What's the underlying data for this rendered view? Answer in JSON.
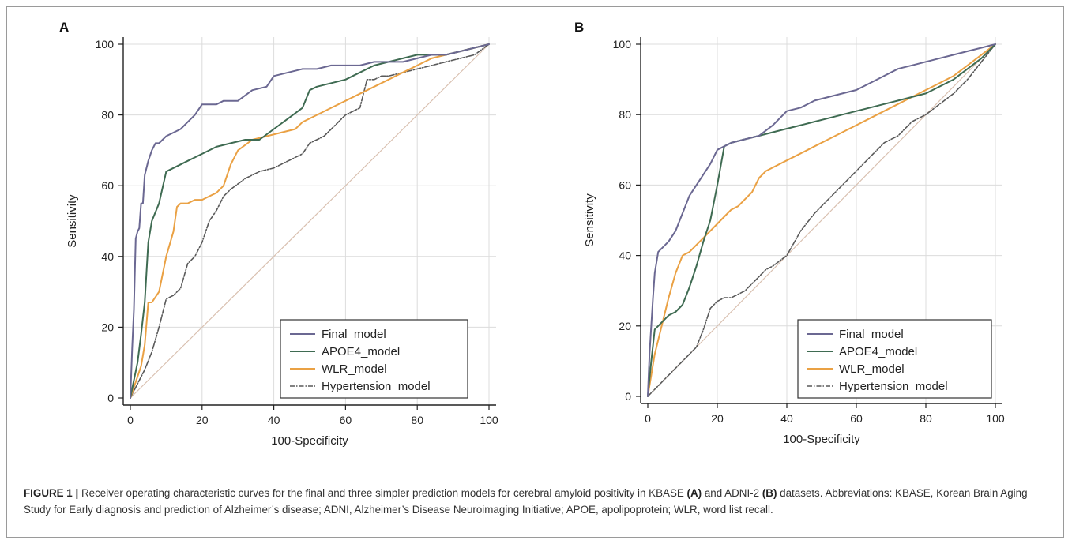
{
  "colors": {
    "final": "#6b6892",
    "apoe4": "#3f6b52",
    "wlr": "#eaa144",
    "hypertension": "#595959",
    "reference": "#d9c0b0",
    "grid": "#dcdcdc",
    "axis": "#222222"
  },
  "chart_data": [
    {
      "panel": "A",
      "type": "line",
      "xlabel": "100-Specificity",
      "ylabel": "Sensitivity",
      "xlim": [
        0,
        100
      ],
      "ylim": [
        0,
        100
      ],
      "xticks": [
        "0",
        "20",
        "40",
        "60",
        "80",
        "100"
      ],
      "yticks": [
        "0",
        "20",
        "40",
        "60",
        "80",
        "100"
      ],
      "grid": true,
      "legend_position": "bottom-right",
      "series": [
        {
          "name": "Final_model",
          "key": "final",
          "style": "solid",
          "x": [
            0,
            0.5,
            1,
            1.5,
            2,
            2.5,
            3,
            3.5,
            4,
            5,
            6,
            7,
            8,
            10,
            12,
            14,
            16,
            18,
            20,
            24,
            26,
            30,
            34,
            38,
            40,
            44,
            48,
            52,
            56,
            60,
            64,
            68,
            72,
            76,
            80,
            84,
            88,
            92,
            96,
            100
          ],
          "y": [
            0,
            14,
            25,
            45,
            47,
            48,
            55,
            55,
            63,
            67,
            70,
            72,
            72,
            74,
            75,
            76,
            78,
            80,
            83,
            83,
            84,
            84,
            87,
            88,
            91,
            92,
            93,
            93,
            94,
            94,
            94,
            95,
            95,
            95,
            96,
            97,
            97,
            98,
            99,
            100
          ]
        },
        {
          "name": "APOE4_model",
          "key": "apoe4",
          "style": "solid",
          "x": [
            0,
            1,
            2,
            3,
            4,
            5,
            6,
            8,
            10,
            12,
            14,
            16,
            18,
            20,
            24,
            28,
            32,
            36,
            40,
            44,
            48,
            50,
            52,
            56,
            60,
            64,
            68,
            72,
            76,
            80,
            84,
            88,
            92,
            96,
            100
          ],
          "y": [
            0,
            5,
            10,
            18,
            27,
            44,
            50,
            55,
            64,
            65,
            66,
            67,
            68,
            69,
            71,
            72,
            73,
            73,
            76,
            79,
            82,
            87,
            88,
            89,
            90,
            92,
            94,
            95,
            96,
            97,
            97,
            97,
            98,
            99,
            100
          ]
        },
        {
          "name": "WLR_model",
          "key": "wlr",
          "style": "solid",
          "x": [
            0,
            1,
            2,
            3,
            4,
            5,
            6,
            8,
            10,
            12,
            13,
            14,
            16,
            18,
            20,
            22,
            24,
            26,
            28,
            30,
            34,
            38,
            42,
            46,
            48,
            52,
            56,
            60,
            64,
            68,
            72,
            76,
            80,
            84,
            88,
            92,
            96,
            100
          ],
          "y": [
            0,
            3,
            6,
            9,
            15,
            27,
            27,
            30,
            40,
            47,
            54,
            55,
            55,
            56,
            56,
            57,
            58,
            60,
            66,
            70,
            73,
            74,
            75,
            76,
            78,
            80,
            82,
            84,
            86,
            88,
            90,
            92,
            94,
            96,
            97,
            98,
            99,
            100
          ]
        },
        {
          "name": "Hypertension_model",
          "key": "hypertension",
          "style": "dashdot",
          "x": [
            0,
            2,
            4,
            6,
            8,
            10,
            12,
            14,
            16,
            18,
            20,
            22,
            24,
            26,
            28,
            32,
            36,
            40,
            44,
            48,
            50,
            54,
            58,
            60,
            64,
            66,
            68,
            70,
            72,
            76,
            80,
            84,
            88,
            92,
            96,
            100
          ],
          "y": [
            0,
            4,
            8,
            13,
            20,
            28,
            29,
            31,
            38,
            40,
            44,
            50,
            53,
            57,
            59,
            62,
            64,
            65,
            67,
            69,
            72,
            74,
            78,
            80,
            82,
            90,
            90,
            91,
            91,
            92,
            93,
            94,
            95,
            96,
            97,
            100
          ]
        },
        {
          "name": "",
          "key": "reference",
          "style": "diagonal",
          "x": [
            0,
            100
          ],
          "y": [
            0,
            100
          ]
        }
      ]
    },
    {
      "panel": "B",
      "type": "line",
      "xlabel": "100-Specificity",
      "ylabel": "Sensitivity",
      "xlim": [
        0,
        100
      ],
      "ylim": [
        0,
        100
      ],
      "xticks": [
        "0",
        "20",
        "40",
        "60",
        "80",
        "100"
      ],
      "yticks": [
        "0",
        "20",
        "40",
        "60",
        "80",
        "100"
      ],
      "grid": true,
      "legend_position": "bottom-right",
      "series": [
        {
          "name": "Final_model",
          "key": "final",
          "style": "solid",
          "x": [
            0,
            0.5,
            1,
            1.5,
            2,
            3,
            4,
            6,
            8,
            10,
            12,
            14,
            16,
            18,
            20,
            22,
            24,
            28,
            32,
            36,
            40,
            44,
            48,
            52,
            56,
            60,
            64,
            68,
            72,
            76,
            80,
            84,
            88,
            92,
            96,
            100
          ],
          "y": [
            0,
            12,
            20,
            28,
            35,
            41,
            42,
            44,
            47,
            52,
            57,
            60,
            63,
            66,
            70,
            71,
            72,
            73,
            74,
            77,
            81,
            82,
            84,
            85,
            86,
            87,
            89,
            91,
            93,
            94,
            95,
            96,
            97,
            98,
            99,
            100
          ]
        },
        {
          "name": "APOE4_model",
          "key": "apoe4",
          "style": "solid",
          "x": [
            0,
            1,
            2,
            4,
            6,
            8,
            10,
            12,
            14,
            16,
            18,
            20,
            22,
            24,
            28,
            32,
            36,
            40,
            44,
            48,
            52,
            56,
            60,
            64,
            68,
            72,
            76,
            80,
            84,
            88,
            92,
            96,
            100
          ],
          "y": [
            0,
            10,
            19,
            21,
            23,
            24,
            26,
            31,
            37,
            44,
            50,
            60,
            71,
            72,
            73,
            74,
            75,
            76,
            77,
            78,
            79,
            80,
            81,
            82,
            83,
            84,
            85,
            86,
            88,
            90,
            93,
            96,
            100
          ]
        },
        {
          "name": "WLR_model",
          "key": "wlr",
          "style": "solid",
          "x": [
            0,
            1,
            2,
            3,
            4,
            6,
            8,
            10,
            12,
            14,
            16,
            18,
            20,
            22,
            24,
            26,
            28,
            30,
            32,
            34,
            36,
            40,
            44,
            48,
            52,
            56,
            60,
            64,
            68,
            72,
            76,
            80,
            84,
            88,
            92,
            96,
            100
          ],
          "y": [
            0,
            6,
            12,
            16,
            20,
            28,
            35,
            40,
            41,
            43,
            45,
            47,
            49,
            51,
            53,
            54,
            56,
            58,
            62,
            64,
            65,
            67,
            69,
            71,
            73,
            75,
            77,
            79,
            81,
            83,
            85,
            87,
            89,
            91,
            94,
            97,
            100
          ]
        },
        {
          "name": "Hypertension_model",
          "key": "hypertension",
          "style": "dashdot",
          "x": [
            0,
            2,
            4,
            6,
            8,
            10,
            12,
            14,
            16,
            18,
            20,
            22,
            24,
            26,
            28,
            30,
            32,
            34,
            36,
            40,
            44,
            48,
            52,
            56,
            60,
            64,
            68,
            72,
            76,
            80,
            84,
            88,
            92,
            96,
            100
          ],
          "y": [
            0,
            2,
            4,
            6,
            8,
            10,
            12,
            14,
            19,
            25,
            27,
            28,
            28,
            29,
            30,
            32,
            34,
            36,
            37,
            40,
            47,
            52,
            56,
            60,
            64,
            68,
            72,
            74,
            78,
            80,
            83,
            86,
            90,
            95,
            100
          ]
        },
        {
          "name": "",
          "key": "reference",
          "style": "diagonal",
          "x": [
            0,
            100
          ],
          "y": [
            0,
            100
          ]
        }
      ]
    }
  ],
  "caption": {
    "lead": "FIGURE 1 |",
    "text1": " Receiver operating characteristic curves for the final and three simpler prediction models for cerebral amyloid positivity in KBASE ",
    "bold1": "(A)",
    "text2": " and ADNI-2 ",
    "bold2": "(B)",
    "text3": " datasets. Abbreviations: KBASE, Korean Brain Aging Study for Early diagnosis and prediction of Alzheimer’s disease; ADNI, Alzheimer’s Disease Neuroimaging Initiative; APOE, apolipoprotein; WLR, word list recall."
  }
}
